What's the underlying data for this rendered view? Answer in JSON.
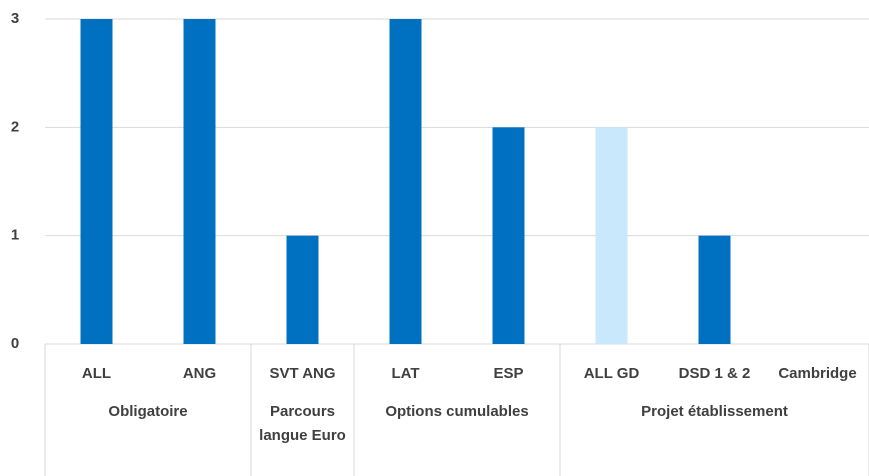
{
  "chart_data": {
    "type": "bar",
    "groups": [
      {
        "name": "Obligatoire",
        "categories": [
          "ALL",
          "ANG"
        ]
      },
      {
        "name": "Parcours langue Euro",
        "categories": [
          "SVT ANG"
        ]
      },
      {
        "name": "Options cumulables",
        "categories": [
          "LAT",
          "ESP"
        ]
      },
      {
        "name": "Projet établissement",
        "categories": [
          "ALL GD",
          "DSD 1 & 2",
          "Cambridge"
        ]
      }
    ],
    "values": [
      3,
      3,
      1,
      3,
      2,
      2,
      1,
      0
    ],
    "colors": [
      "#0070c0",
      "#0070c0",
      "#0070c0",
      "#0070c0",
      "#0070c0",
      "#c9e8fb",
      "#0070c0",
      "#0070c0"
    ],
    "ylim": [
      0,
      3
    ],
    "yticks": [
      0,
      1,
      2,
      3
    ],
    "grid": true
  }
}
